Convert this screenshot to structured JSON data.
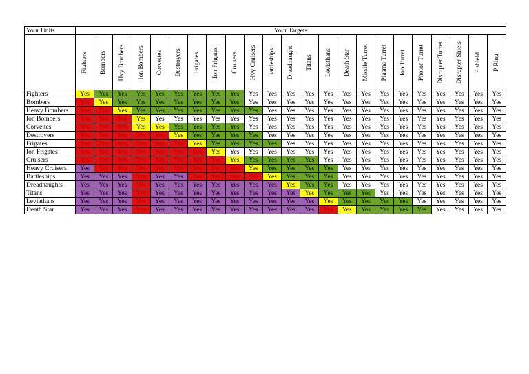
{
  "header": {
    "left": "Your Units",
    "right": "Your Targets"
  },
  "targets": [
    "Fighters",
    "Bombers",
    "Hvy Bombers",
    "Ion Bombers",
    "Corvettes",
    "Destroyers",
    "Frigates",
    "Ion Frigates",
    "Cruisers",
    "Hvy Cruisers",
    "Battleships",
    "Dreadnaught",
    "Titans",
    "Leviathans",
    "Death Star",
    "Missile Turret",
    "Plasma Turret",
    "Ion Turret",
    "Photon Turret",
    "Disrupter Turret",
    "Disrupter Shiels",
    "P shield",
    "P Ring"
  ],
  "cell_value": "Yes",
  "colors": {
    "Y": "#ffff00",
    "G": "#6aa61e",
    "R": "#e01010",
    "P": "#a15fb5",
    "W": "#ffffff"
  },
  "rows": [
    {
      "label": "Fighters",
      "cells": "YGGGGGGGGWWWWWWWWWWWWWW"
    },
    {
      "label": "Bombers",
      "cells": "RYGGGGGGGWWWWWWWWWWWWWW"
    },
    {
      "label": "Heavy Bombers",
      "cells": "RRYGGGGGGGWWWWWWWWWWWWW"
    },
    {
      "label": "Ion Bombers",
      "cells": "RRRYWWWWWWWWWWWWWWWWWWW"
    },
    {
      "label": "Corvettes",
      "cells": "RRRYYGGGGWWWWWWWWWWWWWW"
    },
    {
      "label": "Destroyers",
      "cells": "RRRRRYGGGGWWWWWWWWWWWWW"
    },
    {
      "label": "Frigates",
      "cells": "RRRRRRYGGGGWWWWWWWWWWWW"
    },
    {
      "label": "Ion Frigates",
      "cells": "RRRRRRRYWWWWWWWWWWWWWWW"
    },
    {
      "label": "Cruisers",
      "cells": "RRRRRRRRYGGGGWWWWWWWWWW"
    },
    {
      "label": "Heavy Cruisers",
      "cells": "PRRRRRRRRYGGGGWWWWWWWWW"
    },
    {
      "label": "Battleships",
      "cells": "PPPRPPRRRRYGGGWWWWWWWWW"
    },
    {
      "label": "Dreadnaughts",
      "cells": "PPPRPPPPPPPYGGWWWWWWWWW"
    },
    {
      "label": "Titans",
      "cells": "PPPRPPPPPPPPYGGGWWWWWWW"
    },
    {
      "label": "Leviathans",
      "cells": "PPPRPPPPPPPPPYGGGGWWWWW"
    },
    {
      "label": "Death Star",
      "cells": "PPPRPPPPPPPPPRYGGGGWWWW"
    }
  ]
}
